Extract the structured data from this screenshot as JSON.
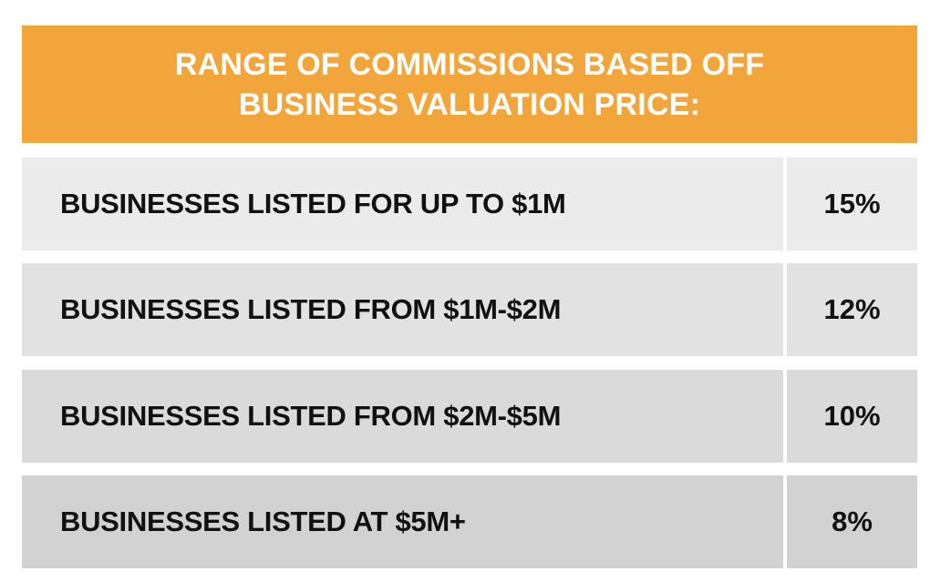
{
  "header": {
    "title": "RANGE OF COMMISSIONS BASED OFF\nBUSINESS VALUATION PRICE:"
  },
  "rows": [
    {
      "label": "BUSINESSES LISTED FOR UP TO $1M",
      "value": "15%"
    },
    {
      "label": "BUSINESSES LISTED FROM $1M-$2M",
      "value": "12%"
    },
    {
      "label": "BUSINESSES LISTED FROM $2M-$5M",
      "value": "10%"
    },
    {
      "label": "BUSINESSES LISTED AT $5M+",
      "value": "8%"
    }
  ],
  "colors": {
    "header_bg": "#F2A53A",
    "header_text": "#FFFFFF",
    "row_text": "#111111"
  }
}
